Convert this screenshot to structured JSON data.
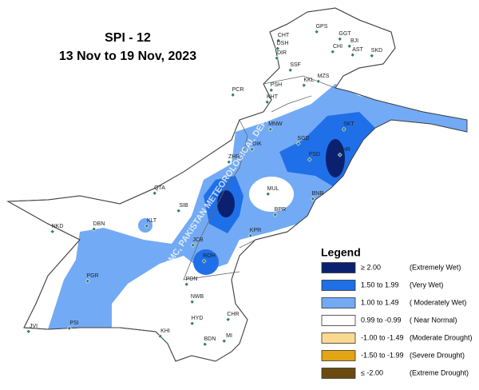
{
  "title": "SPI - 12",
  "subtitle": "13 Nov to 19 Nov, 2023",
  "watermark": "NDMC, PAKISTAN METEOROLOGICAL DEPA",
  "stations": [
    "GPS",
    "GGT",
    "CHT",
    "BJI",
    "DSH",
    "CHI",
    "AST",
    "SKD",
    "DIR",
    "SSF",
    "KKL",
    "MZS",
    "PSH",
    "PCR",
    "KHT",
    "MNW",
    "SKT",
    "DIK",
    "SGD",
    "FSD",
    "LHR",
    "ZHB",
    "QTA",
    "MUL",
    "BNR",
    "SIB",
    "BPR",
    "KLT",
    "NKD",
    "DBN",
    "KPR",
    "JCB",
    "ROH",
    "PGR",
    "PDN",
    "NWB",
    "CHR",
    "HYD",
    "PSI",
    "JVI",
    "KHI",
    "BDN",
    "MI"
  ],
  "legend": {
    "title": "Legend",
    "items": [
      {
        "range": "≥ 2.00",
        "label": "(Extremely Wet)",
        "color": "#0b2170"
      },
      {
        "range": "1.50 to 1.99",
        "label": "(Very Wet)",
        "color": "#1f6fe8"
      },
      {
        "range": "1.00 to 1.49",
        "label": "( Moderately Wet)",
        "color": "#73aaf5"
      },
      {
        "range": "0.99 to -0.99",
        "label": "( Near Normal)",
        "color": "#ffffff"
      },
      {
        "range": "-1.00 to -1.49",
        "label": "(Moderate Drought)",
        "color": "#fbd98f"
      },
      {
        "range": "-1.50 to -1.99",
        "label": "(Severe Drought)",
        "color": "#e3a416"
      },
      {
        "range": "≤ -2.00",
        "label": "(Extreme Drought)",
        "color": "#6b4a12"
      }
    ]
  }
}
